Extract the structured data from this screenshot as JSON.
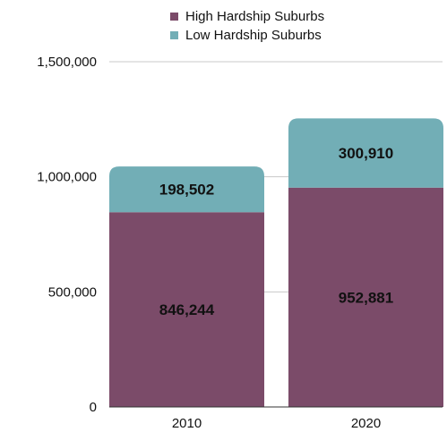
{
  "chart_data": {
    "type": "bar",
    "stacked": true,
    "categories": [
      "2010",
      "2020"
    ],
    "series": [
      {
        "name": "High Hardship Suburbs",
        "color": "#7b4b69",
        "values": [
          846244,
          952881
        ],
        "labels": [
          "846,244",
          "952,881"
        ]
      },
      {
        "name": "Low Hardship Suburbs",
        "color": "#72aeb6",
        "values": [
          198502,
          300910
        ],
        "labels": [
          "198,502",
          "300,910"
        ]
      }
    ],
    "ylim": [
      0,
      1500000
    ],
    "yticks": [
      0,
      500000,
      1000000,
      1500000
    ],
    "ytick_labels": [
      "0",
      "500,000",
      "1,000,000",
      "1,500,000"
    ],
    "grid": true,
    "legend_position": "top-right"
  }
}
